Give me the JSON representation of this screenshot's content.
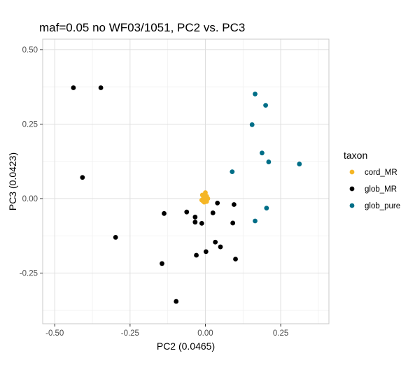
{
  "chart_data": {
    "type": "scatter",
    "title": "maf=0.05 no WF03/1051, PC2 vs. PC3",
    "xlabel": "PC2 (0.0465)",
    "ylabel": "PC3 (0.0423)",
    "xlim": [
      -0.54,
      0.41
    ],
    "ylim": [
      -0.42,
      0.535
    ],
    "x_ticks": [
      -0.5,
      -0.25,
      0.0,
      0.25
    ],
    "x_tick_labels": [
      "-0.50",
      "-0.25",
      "0.00",
      "0.25"
    ],
    "y_ticks": [
      -0.25,
      0.0,
      0.25,
      0.5
    ],
    "y_tick_labels": [
      "-0.25",
      "0.00",
      "0.25",
      "0.50"
    ],
    "grid": true,
    "legend": {
      "title": "taxon",
      "placement": "right"
    },
    "series": [
      {
        "name": "cord_MR",
        "color": "#F5B626",
        "points": [
          [
            -0.01,
            0.012
          ],
          [
            0.0,
            0.02
          ],
          [
            -0.006,
            0.004
          ],
          [
            0.004,
            0.008
          ],
          [
            -0.012,
            -0.005
          ],
          [
            -0.004,
            -0.012
          ],
          [
            0.004,
            -0.01
          ],
          [
            -0.002,
            -0.002
          ],
          [
            0.008,
            0.0
          ],
          [
            -0.008,
            -0.008
          ],
          [
            0.002,
            0.003
          ]
        ]
      },
      {
        "name": "glob_MR",
        "color": "#000000",
        "points": [
          [
            -0.438,
            0.372
          ],
          [
            -0.347,
            0.372
          ],
          [
            -0.408,
            0.071
          ],
          [
            -0.298,
            -0.13
          ],
          [
            -0.137,
            -0.05
          ],
          [
            -0.144,
            -0.218
          ],
          [
            -0.062,
            -0.045
          ],
          [
            -0.034,
            -0.062
          ],
          [
            -0.034,
            -0.079
          ],
          [
            -0.012,
            -0.083
          ],
          [
            0.025,
            -0.048
          ],
          [
            0.04,
            -0.015
          ],
          [
            0.095,
            -0.02
          ],
          [
            0.091,
            -0.082
          ],
          [
            0.033,
            -0.146
          ],
          [
            0.05,
            -0.162
          ],
          [
            0.002,
            -0.178
          ],
          [
            -0.03,
            -0.19
          ],
          [
            0.1,
            -0.203
          ],
          [
            -0.097,
            -0.345
          ]
        ]
      },
      {
        "name": "glob_pure",
        "color": "#006E87",
        "points": [
          [
            0.165,
            0.351
          ],
          [
            0.2,
            0.313
          ],
          [
            0.155,
            0.248
          ],
          [
            0.188,
            0.153
          ],
          [
            0.21,
            0.123
          ],
          [
            0.312,
            0.116
          ],
          [
            0.089,
            0.09
          ],
          [
            0.203,
            -0.032
          ],
          [
            0.165,
            -0.075
          ]
        ]
      }
    ]
  }
}
